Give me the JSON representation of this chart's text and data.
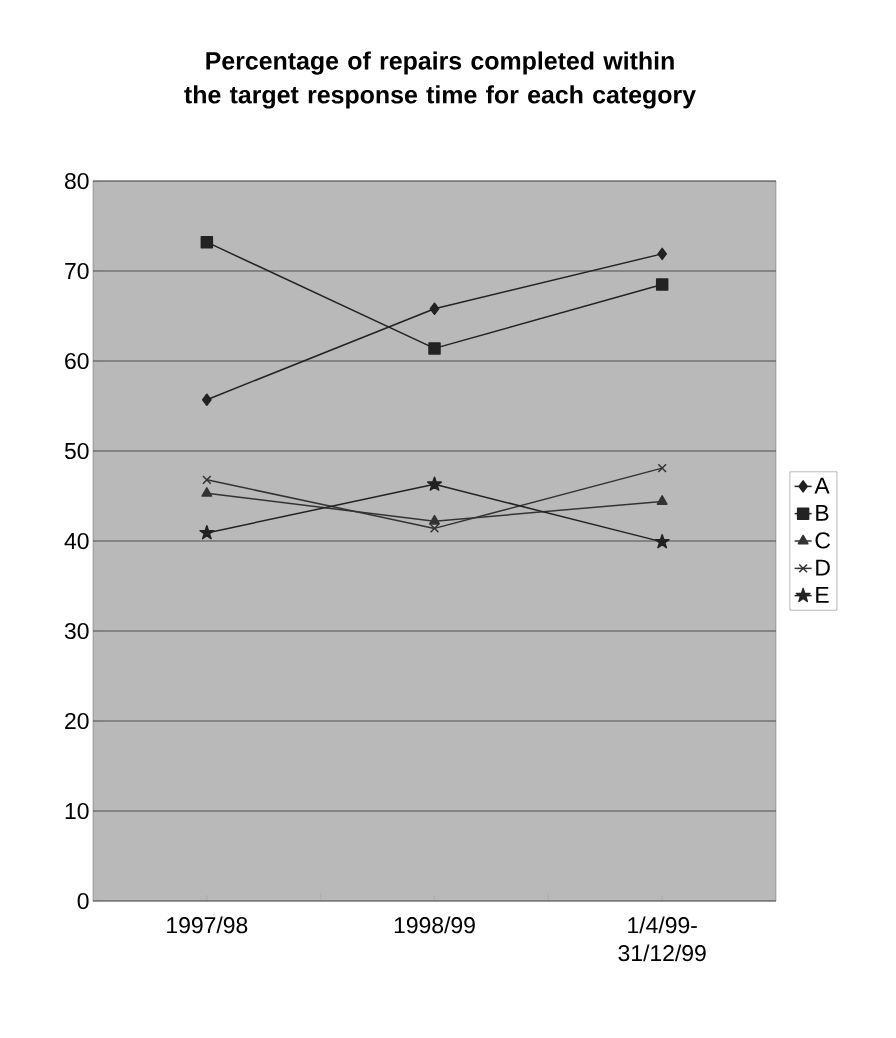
{
  "chart_data": {
    "type": "line",
    "title": "Percentage of repairs completed within the target response time for each category",
    "categories": [
      "1997/98",
      "1998/99",
      "1/4/99-31/12/99"
    ],
    "series": [
      {
        "name": "A",
        "color": "#222222",
        "marker": "diamond",
        "values": [
          55.7,
          65.8,
          71.9
        ]
      },
      {
        "name": "B",
        "color": "#222222",
        "marker": "square",
        "values": [
          73.2,
          61.4,
          68.5
        ]
      },
      {
        "name": "C",
        "color": "#333333",
        "marker": "triangle",
        "values": [
          45.3,
          42.2,
          44.4
        ]
      },
      {
        "name": "D",
        "color": "#333333",
        "marker": "cross",
        "values": [
          46.8,
          41.4,
          48.1
        ]
      },
      {
        "name": "E",
        "color": "#222222",
        "marker": "star",
        "values": [
          40.9,
          46.3,
          39.9
        ]
      }
    ],
    "ylim": [
      0,
      80
    ],
    "yticks": [
      0,
      10,
      20,
      30,
      40,
      50,
      60,
      70,
      80
    ],
    "grid": "y",
    "legend": "right",
    "line_style": "solid"
  }
}
